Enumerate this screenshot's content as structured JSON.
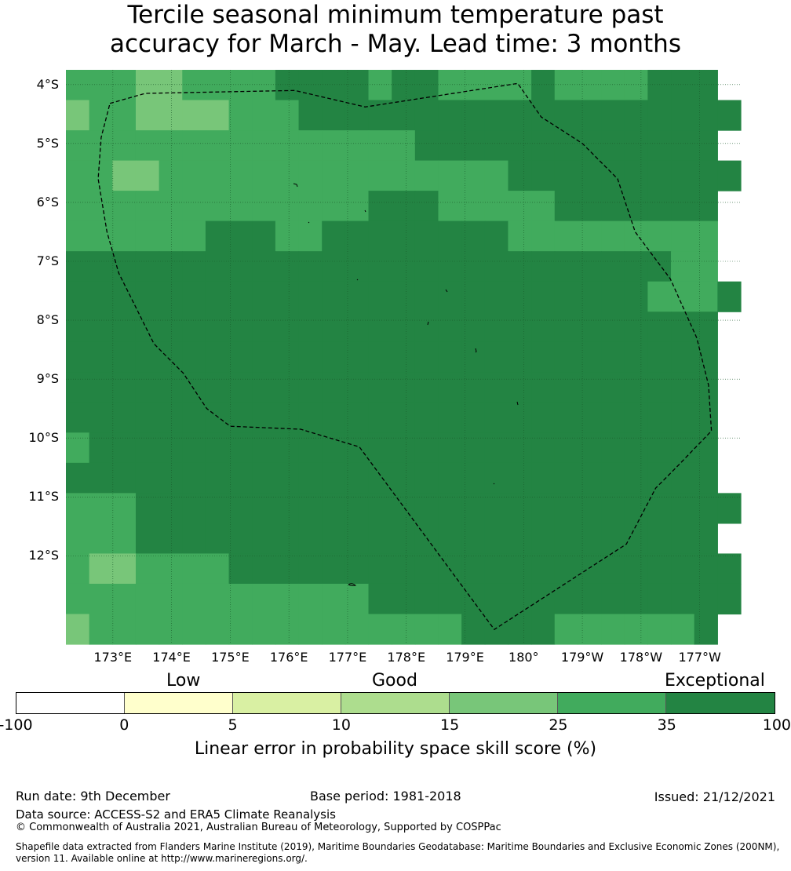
{
  "title_line1": "Tercile seasonal minimum temperature past",
  "title_line2": "accuracy for March - May. Lead time: 3 months",
  "map": {
    "lat_labels": [
      "4°S",
      "5°S",
      "6°S",
      "7°S",
      "8°S",
      "9°S",
      "10°S",
      "11°S",
      "12°S"
    ],
    "lon_labels": [
      "173°E",
      "174°E",
      "175°E",
      "176°E",
      "177°E",
      "178°E",
      "179°E",
      "180°",
      "179°W",
      "178°W",
      "177°W"
    ],
    "lat_range": [
      -13.5,
      -3.75
    ],
    "lon_range": [
      172.2,
      183.7
    ],
    "cell_size_deg": 0.83,
    "grid_legend": {
      "A": "0 - 5 (light)",
      "a": "15 - 25",
      "b": "25 - 35",
      "c": "35 - 100"
    },
    "grid_rows": [
      "bbbaabbbbccccbccbbbbcbbbbccc",
      "abbaaaabbbccccccccccccccccccc",
      "bbbbbbbbbbbbbbbccccccccccccc",
      "bbaabbbbbbbbbbbbbbbcccccccccc",
      "bbbbbbbbbbbbbcccbbbbbccccccc",
      "bbbbbbcccbbccccccccbbbbbbbbb",
      "ccccccccccccccccccccccccccbb",
      "cccccccccccccccccccccccccbbbc",
      "cccccccccccccccccccccccccccc",
      "cccccccccccccccccccccccccccc",
      "cccccccccccccccccccccccccccc",
      "cccccccccccccccccccccccccccc",
      "bccccccccccccccccccccccccccc",
      "cccccccccccccccccccccccccccc",
      "bbbcccccccccccccccccccccccccc",
      "bbbccccccccccccccccccccccccc",
      "baabbbbcccccccccccccccccccccc",
      "bbbbbbbbbbbbbcccccccccccccccc",
      "abbbbbbbbbbbbbbbbccccbbbbbbc"
    ],
    "colors": {
      "a": "#78c679",
      "b": "#41ab5d",
      "c": "#238443",
      "light_a": "#a8db9e"
    },
    "eez_boundary": [
      [
        172.95,
        -4.32
      ],
      [
        173.55,
        -4.15
      ],
      [
        176.1,
        -4.1
      ],
      [
        177.3,
        -4.38
      ],
      [
        179.9,
        -3.98
      ],
      [
        180.3,
        -4.55
      ],
      [
        181.0,
        -5.0
      ],
      [
        181.6,
        -5.6
      ],
      [
        181.9,
        -6.5
      ],
      [
        182.5,
        -7.3
      ],
      [
        182.95,
        -8.3
      ],
      [
        183.15,
        -9.1
      ],
      [
        183.2,
        -9.88
      ],
      [
        182.6,
        -10.5
      ],
      [
        182.25,
        -10.85
      ],
      [
        181.75,
        -11.8
      ],
      [
        179.5,
        -13.25
      ],
      [
        177.2,
        -10.15
      ],
      [
        176.2,
        -9.85
      ],
      [
        175.0,
        -9.8
      ],
      [
        174.6,
        -9.5
      ],
      [
        174.2,
        -8.9
      ],
      [
        173.7,
        -8.4
      ],
      [
        173.3,
        -7.6
      ],
      [
        173.1,
        -7.2
      ],
      [
        172.9,
        -6.5
      ],
      [
        172.75,
        -5.6
      ],
      [
        172.8,
        -4.9
      ],
      [
        172.95,
        -4.32
      ]
    ]
  },
  "colorbar": {
    "category_labels": [
      "Low",
      "Good",
      "Exceptional"
    ],
    "segments": [
      {
        "from": -100,
        "to": 0,
        "color": "#ffffff"
      },
      {
        "from": 0,
        "to": 5,
        "color": "#ffffcc"
      },
      {
        "from": 5,
        "to": 10,
        "color": "#d9f0a3"
      },
      {
        "from": 10,
        "to": 15,
        "color": "#addd8e"
      },
      {
        "from": 15,
        "to": 25,
        "color": "#78c679"
      },
      {
        "from": 25,
        "to": 35,
        "color": "#41ab5d"
      },
      {
        "from": 35,
        "to": 100,
        "color": "#238443"
      }
    ],
    "ticks": [
      "-100",
      "0",
      "5",
      "10",
      "15",
      "25",
      "35",
      "100"
    ],
    "label": "Linear error in probability space skill score (%)"
  },
  "footer": {
    "run_date": "Run date: 9th December",
    "base_period": "Base period: 1981-2018",
    "issued": "Issued: 21/12/2021",
    "data_source": "Data source: ACCESS-S2 and ERA5 Climate Reanalysis",
    "copyright": "© Commonwealth of Australia 2021, Australian Bureau of Meteorology, Supported by COSPPac",
    "shapefile_line1": "Shapefile data extracted from Flanders Marine Institute (2019), Maritime Boundaries Geodatabase: Maritime Boundaries and Exclusive Economic Zones (200NM),",
    "shapefile_line2": "version 11. Available online at http://www.marineregions.org/."
  }
}
